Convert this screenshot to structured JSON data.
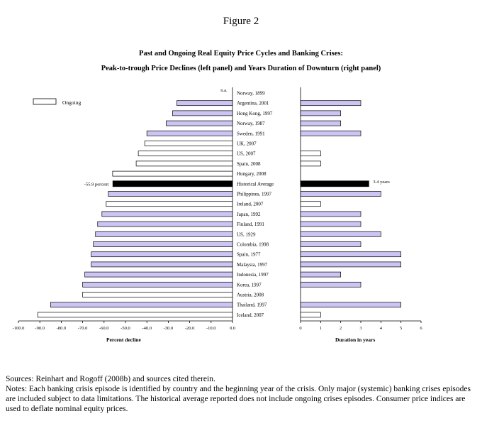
{
  "figure_label": "Figure 2",
  "sources": "Sources: Reinhart and Rogoff (2008b) and sources cited therein.",
  "notes": "Notes: Each banking crisis episode is identified by country and the beginning year of the crisis.  Only major (systemic) banking crises episodes are included subject to data limitations.  The historical average reported does not include ongoing crises episodes.  Consumer price indices are used to deflate nominal equity prices.",
  "chart_data": {
    "type": "bar",
    "orientation": "horizontal",
    "title": "Past and Ongoing Real Equity Price Cycles and Banking Crises:",
    "subtitle": "Peak-to-trough Price Declines (left panel) and Years Duration of Downturn (right panel)",
    "legend": {
      "label": "Ongoing",
      "placement": "top-left"
    },
    "colors": {
      "past": "#ccc4f2",
      "ongoing": "#ffffff",
      "average": "#000000",
      "outline": "#000000"
    },
    "categories": [
      "Norway, 1899",
      "Argentina, 2001",
      "Hong Kong, 1997",
      "Norway, 1987",
      "Sweden, 1991",
      "UK, 2007",
      "US, 2007",
      "Spain, 2008",
      "Hungary, 2008",
      "Historical Average",
      "Philippines, 1997",
      "Ireland, 2007",
      "Japan, 1992",
      "Finland, 1991",
      "US, 1929",
      "Colombia, 1998",
      "Spain, 1977",
      "Malaysia, 1997",
      "Indonesia, 1997",
      "Korea, 1997",
      "Austria, 2008",
      "Thailand, 1997",
      "Iceland, 2007"
    ],
    "kinds": [
      "past",
      "past",
      "past",
      "past",
      "past",
      "ongoing",
      "ongoing",
      "ongoing",
      "ongoing",
      "average",
      "past",
      "ongoing",
      "past",
      "past",
      "past",
      "past",
      "past",
      "past",
      "past",
      "past",
      "ongoing",
      "past",
      "ongoing"
    ],
    "left_panel": {
      "xlabel": "Percent decline",
      "xlim": [
        -100,
        0
      ],
      "ticks": [
        "-100.0",
        "-90.0",
        "-80.0",
        "-70.0",
        "-60.0",
        "-50.0",
        "-40.0",
        "-30.0",
        "-20.0",
        "-10.0",
        "0.0"
      ],
      "values": [
        null,
        -26,
        -28,
        -31,
        -40,
        -41,
        -44,
        -45,
        -56,
        -55.9,
        -58,
        -59,
        -61,
        -63,
        -64,
        -65,
        -66,
        -66,
        -69,
        -70,
        -70,
        -85,
        -91
      ],
      "missing_label": "n.a.",
      "average_label": "-55.9 percent"
    },
    "right_panel": {
      "xlabel": "Duration in years",
      "xlim": [
        0,
        6
      ],
      "ticks": [
        "0",
        "1",
        "2",
        "3",
        "4",
        "5",
        "6"
      ],
      "values": [
        null,
        3,
        2,
        2,
        3,
        null,
        1,
        1,
        null,
        3.4,
        4,
        1,
        3,
        3,
        4,
        3,
        5,
        5,
        2,
        3,
        null,
        5,
        1
      ],
      "average_label": "3.4 years"
    }
  }
}
